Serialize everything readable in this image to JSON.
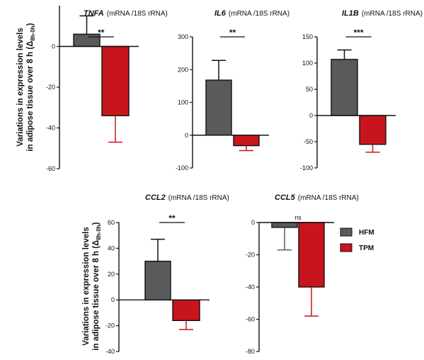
{
  "colors": {
    "HFM": "#5a5a5a",
    "TPM": "#c8151d",
    "axis": "#111111"
  },
  "ylabel": {
    "line1": "Variations in expression levels",
    "line2": "in adipose tissue over 8 h (Δ",
    "sub": "8h-0h",
    "close": ")"
  },
  "legend": [
    {
      "name": "HFM",
      "color": "#5a5a5a"
    },
    {
      "name": "TPM",
      "color": "#c8151d"
    }
  ],
  "chart_data": [
    {
      "type": "bar",
      "gene": "TNFA",
      "unit": "(mRNA /18S rRNA)",
      "categories": [
        "HFM",
        "TPM"
      ],
      "values": [
        6,
        -34
      ],
      "errors": [
        9,
        13
      ],
      "yticks": [
        0,
        -20,
        -40,
        -60
      ],
      "ylim": [
        -60,
        20
      ],
      "significance": "**"
    },
    {
      "type": "bar",
      "gene": "IL6",
      "unit": "(mRNA /18S rRNA)",
      "categories": [
        "HFM",
        "TPM"
      ],
      "values": [
        168,
        -32
      ],
      "errors": [
        60,
        15
      ],
      "yticks": [
        300,
        200,
        100,
        0,
        -100
      ],
      "ylim": [
        -100,
        300
      ],
      "significance": "**"
    },
    {
      "type": "bar",
      "gene": "IL1B",
      "unit": "(mRNA /18S rRNA)",
      "categories": [
        "HFM",
        "TPM"
      ],
      "values": [
        107,
        -55
      ],
      "errors": [
        18,
        15
      ],
      "yticks": [
        150,
        100,
        50,
        0,
        -50,
        -100
      ],
      "ylim": [
        -100,
        150
      ],
      "significance": "***"
    },
    {
      "type": "bar",
      "gene": "CCL2",
      "unit": "(mRNA /18S rRNA)",
      "categories": [
        "HFM",
        "TPM"
      ],
      "values": [
        30,
        -16
      ],
      "errors": [
        17,
        7
      ],
      "yticks": [
        60,
        40,
        20,
        0,
        -20,
        -40
      ],
      "ylim": [
        -40,
        60
      ],
      "significance": "**"
    },
    {
      "type": "bar",
      "gene": "CCL5",
      "unit": "(mRNA /18S rRNA)",
      "categories": [
        "HFM",
        "TPM"
      ],
      "values": [
        -3,
        -40
      ],
      "errors": [
        14,
        18
      ],
      "yticks": [
        0,
        -20,
        -40,
        -60,
        -80
      ],
      "ylim": [
        -80,
        0
      ],
      "significance": "ns"
    }
  ]
}
